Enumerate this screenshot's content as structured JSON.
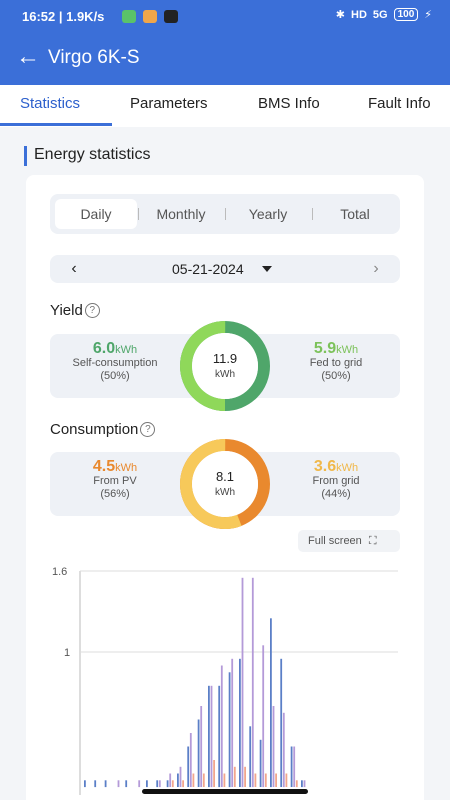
{
  "status_bar": {
    "time": "16:52 | 1.9K/s",
    "network": "5G",
    "hd": "HD",
    "battery": "100"
  },
  "app_bar": {
    "title": "Virgo 6K-S"
  },
  "tabs": [
    {
      "label": "Statistics"
    },
    {
      "label": "Parameters"
    },
    {
      "label": "BMS Info"
    },
    {
      "label": "Fault Info"
    }
  ],
  "section_title": "Energy statistics",
  "period_selector": {
    "options": [
      "Daily",
      "Monthly",
      "Yearly",
      "Total"
    ],
    "selected": "Daily"
  },
  "date": "05-21-2024",
  "yield": {
    "title": "Yield",
    "total": "11.9",
    "unit": "kWh",
    "left": {
      "value": "6.0",
      "unit": "kWh",
      "label": "Self-consumption",
      "pct": "(50%)"
    },
    "right": {
      "value": "5.9",
      "unit": "kWh",
      "label": "Fed to grid",
      "pct": "(50%)"
    },
    "colors": {
      "left": "#8fd85a",
      "right": "#4fa66a"
    },
    "split": 0.5
  },
  "consumption": {
    "title": "Consumption",
    "total": "8.1",
    "unit": "kWh",
    "left": {
      "value": "4.5",
      "unit": "kWh",
      "label": "From PV",
      "pct": "(56%)"
    },
    "right": {
      "value": "3.6",
      "unit": "kWh",
      "label": "From grid",
      "pct": "(44%)"
    },
    "colors": {
      "left": "#f7c95a",
      "right": "#e9892e"
    },
    "split": 0.44
  },
  "fullscreen_label": "Full screen",
  "chart_data": {
    "type": "bar",
    "y_ticks": [
      "1.6",
      "1"
    ],
    "ylim": [
      0,
      1.6
    ],
    "series": [
      {
        "color": "#5b7fc7",
        "values": [
          0.05,
          0.05,
          0.05,
          0,
          0.05,
          0,
          0.05,
          0.05,
          0.05,
          0.1,
          0.3,
          0.5,
          0.75,
          0.75,
          0.85,
          0.95,
          0.45,
          0.35,
          1.25,
          0.95,
          0.3,
          0.05,
          0,
          0,
          0,
          0,
          0,
          0,
          0,
          0
        ]
      },
      {
        "color": "#b49ad8",
        "values": [
          0,
          0,
          0,
          0.05,
          0,
          0.05,
          0,
          0.05,
          0.1,
          0.15,
          0.4,
          0.6,
          0.75,
          0.9,
          0.95,
          1.55,
          1.55,
          1.05,
          0.6,
          0.55,
          0.3,
          0.05,
          0,
          0,
          0,
          0,
          0,
          0,
          0,
          0
        ]
      },
      {
        "color": "#f2a68c",
        "values": [
          0,
          0,
          0,
          0,
          0,
          0,
          0,
          0,
          0.05,
          0.05,
          0.1,
          0.1,
          0.2,
          0.1,
          0.15,
          0.15,
          0.1,
          0.1,
          0.1,
          0.1,
          0.05,
          0,
          0,
          0,
          0,
          0,
          0,
          0,
          0,
          0
        ]
      }
    ]
  }
}
